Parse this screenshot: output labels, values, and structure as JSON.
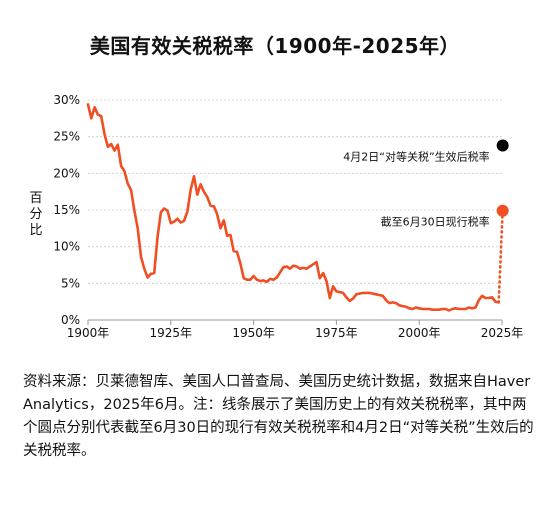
{
  "title": "美国有效关税税率（1900年-2025年）",
  "source_note": "资料来源：贝莱德智库、美国人口普查局、美国历史统计数据，数据来自Haver Analytics，2025年6月。注：线条展示了美国历史上的有效关税税率，其中两个圆点分别代表截至6月30日的现行有效关税税率和4月2日“对等关税”生效后的关税税率。",
  "colors": {
    "line": "#f04e23",
    "dot_april": "#000000",
    "dot_june": "#f04e23",
    "axis": "#999999",
    "grid": "#cccccc"
  },
  "chart_data": {
    "type": "line",
    "title": "美国有效关税税率（1900年-2025年）",
    "xlabel": "",
    "ylabel_chars": [
      "百",
      "分",
      "比"
    ],
    "xlim": [
      1900,
      2025
    ],
    "ylim": [
      0,
      30
    ],
    "x_ticks": [
      1900,
      1925,
      1950,
      1975,
      2000,
      2025
    ],
    "x_tick_labels": [
      "1900年",
      "1925年",
      "1950年",
      "1975年",
      "2000年",
      "2025年"
    ],
    "y_ticks": [
      0,
      5,
      10,
      15,
      20,
      25,
      30
    ],
    "y_tick_labels": [
      "0%",
      "5%",
      "10%",
      "15%",
      "20%",
      "25%",
      "30%"
    ],
    "series": [
      {
        "x": [
          1900,
          1901,
          1902,
          1903,
          1904,
          1905,
          1906,
          1907,
          1908,
          1909,
          1910,
          1911,
          1912,
          1913,
          1914,
          1915,
          1916,
          1917,
          1918,
          1919,
          1920,
          1921,
          1922,
          1923,
          1924,
          1925,
          1926,
          1927,
          1928,
          1929,
          1930,
          1931,
          1932,
          1933,
          1934,
          1935,
          1936,
          1937,
          1938,
          1939,
          1940,
          1941,
          1942,
          1943,
          1944,
          1945,
          1946,
          1947,
          1948,
          1949,
          1950,
          1951,
          1952,
          1953,
          1954,
          1955,
          1956,
          1957,
          1958,
          1959,
          1960,
          1961,
          1962,
          1963,
          1964,
          1965,
          1966,
          1967,
          1968,
          1969,
          1970,
          1971,
          1972,
          1973,
          1974,
          1975,
          1976,
          1977,
          1978,
          1979,
          1980,
          1981,
          1982,
          1983,
          1984,
          1985,
          1986,
          1987,
          1988,
          1989,
          1990,
          1991,
          1992,
          1993,
          1994,
          1995,
          1996,
          1997,
          1998,
          1999,
          2000,
          2001,
          2002,
          2003,
          2004,
          2005,
          2006,
          2007,
          2008,
          2009,
          2010,
          2011,
          2012,
          2013,
          2014,
          2015,
          2016,
          2017,
          2018,
          2019,
          2020,
          2021,
          2022,
          2023,
          2024
        ],
        "y": [
          29.4,
          27.5,
          29.0,
          28.0,
          27.8,
          25.3,
          23.6,
          24.0,
          23.1,
          23.9,
          21.0,
          20.3,
          18.6,
          17.7,
          14.9,
          12.5,
          8.6,
          7.0,
          5.8,
          6.3,
          6.4,
          11.4,
          14.7,
          15.2,
          14.9,
          13.2,
          13.4,
          13.8,
          13.3,
          13.5,
          14.8,
          17.8,
          19.6,
          17.1,
          18.5,
          17.5,
          16.8,
          15.6,
          15.5,
          14.4,
          12.5,
          13.6,
          11.5,
          11.6,
          9.4,
          9.3,
          7.7,
          5.7,
          5.5,
          5.5,
          6.0,
          5.5,
          5.3,
          5.4,
          5.2,
          5.6,
          5.5,
          5.8,
          6.5,
          7.2,
          7.3,
          7.0,
          7.4,
          7.3,
          7.0,
          7.1,
          7.0,
          7.3,
          7.6,
          7.9,
          5.7,
          6.4,
          5.3,
          3.0,
          4.6,
          3.9,
          3.8,
          3.7,
          3.1,
          2.6,
          2.9,
          3.5,
          3.6,
          3.7,
          3.7,
          3.7,
          3.6,
          3.5,
          3.4,
          3.3,
          2.7,
          2.3,
          2.4,
          2.3,
          2.0,
          1.9,
          1.8,
          1.6,
          1.5,
          1.7,
          1.6,
          1.5,
          1.5,
          1.5,
          1.4,
          1.4,
          1.4,
          1.5,
          1.5,
          1.3,
          1.5,
          1.6,
          1.5,
          1.5,
          1.5,
          1.7,
          1.6,
          1.7,
          2.7,
          3.3,
          3.0,
          3.0,
          3.1,
          2.5,
          2.4
        ]
      }
    ],
    "dotted_connector": {
      "from": [
        2024,
        2.4
      ],
      "to": [
        2025.2,
        14.9
      ]
    },
    "annotations": [
      {
        "label": "4月2日“对等关税”生效后税率",
        "x": 2025.2,
        "y": 23.8,
        "color": "#000000"
      },
      {
        "label": "截至6月30日现行税率",
        "x": 2025.2,
        "y": 14.9,
        "color": "#f04e23"
      }
    ]
  }
}
